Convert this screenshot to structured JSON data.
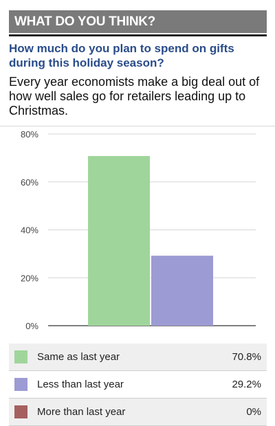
{
  "header": {
    "banner": "WHAT DO YOU THINK?"
  },
  "poll": {
    "question": "How much do you plan to spend on gifts during this holiday season?",
    "description": "Every year economists make a big deal out of how well sales go for retailers leading up to Christmas."
  },
  "chart_data": {
    "type": "bar",
    "categories": [
      "Same as last year",
      "Less than last year",
      "More than last year"
    ],
    "values": [
      70.8,
      29.2,
      0
    ],
    "colors": [
      "#9fd59b",
      "#9d9bd3",
      "#a65f5f"
    ],
    "ylim": [
      0,
      80
    ],
    "yticks": [
      "0%",
      "20%",
      "40%",
      "60%",
      "80%"
    ],
    "grid": true
  },
  "legend": [
    {
      "label": "Same as last year",
      "value": "70.8%",
      "color": "#9fd59b"
    },
    {
      "label": "Less than last year",
      "value": "29.2%",
      "color": "#9d9bd3"
    },
    {
      "label": "More than last year",
      "value": "0%",
      "color": "#a65f5f"
    }
  ]
}
